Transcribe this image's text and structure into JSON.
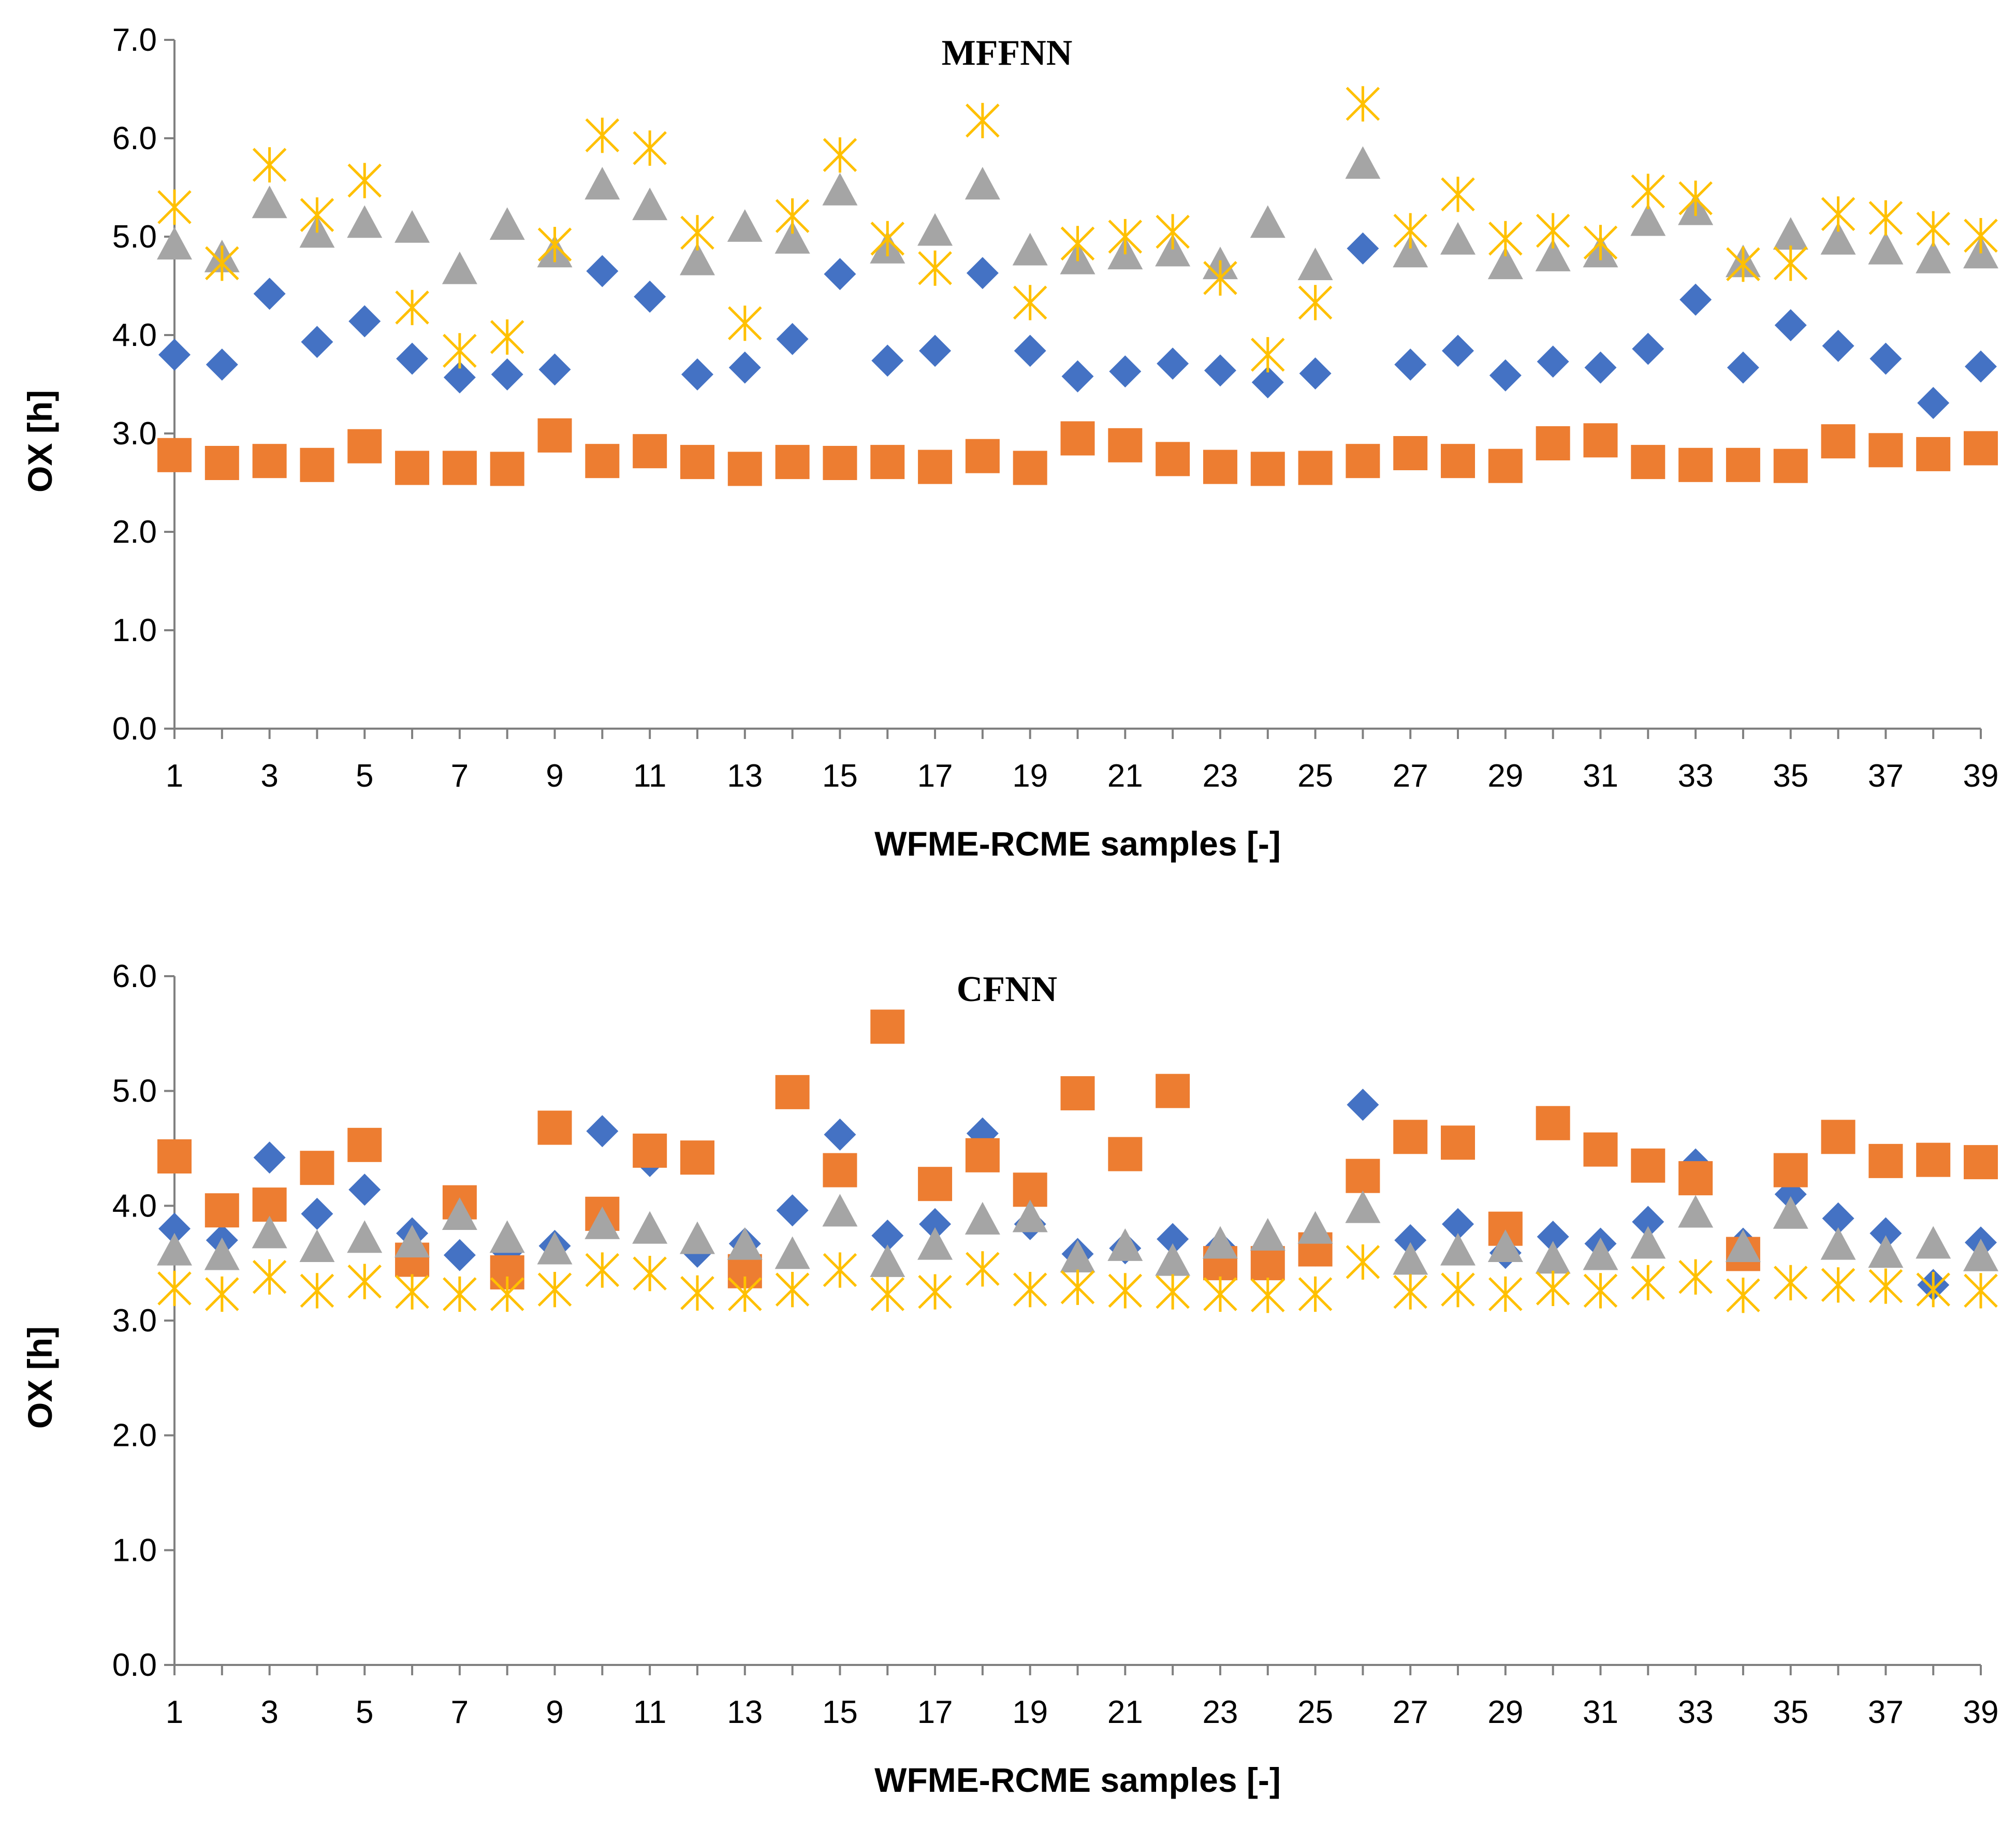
{
  "chart_data": [
    {
      "type": "scatter",
      "title": "MFFNN",
      "xlabel": "WFME-RCME samples [-]",
      "ylabel": "OX [h]",
      "xlim": [
        1,
        39
      ],
      "ylim": [
        0,
        7
      ],
      "yticks": [
        "0.0",
        "1.0",
        "2.0",
        "3.0",
        "4.0",
        "5.0",
        "6.0",
        "7.0"
      ],
      "xticks": [
        "1",
        "3",
        "5",
        "7",
        "9",
        "11",
        "13",
        "15",
        "17",
        "19",
        "21",
        "23",
        "25",
        "27",
        "29",
        "31",
        "33",
        "35",
        "37",
        "39"
      ],
      "x": [
        1,
        2,
        3,
        4,
        5,
        6,
        7,
        8,
        9,
        10,
        11,
        12,
        13,
        14,
        15,
        16,
        17,
        18,
        19,
        20,
        21,
        22,
        23,
        24,
        25,
        26,
        27,
        28,
        29,
        30,
        31,
        32,
        33,
        34,
        35,
        36,
        37,
        38,
        39
      ],
      "series": [
        {
          "name": "series-diamond",
          "marker": "diamond",
          "color": "#4472c4",
          "values": [
            3.8,
            3.7,
            4.42,
            3.93,
            4.14,
            3.76,
            3.57,
            3.6,
            3.65,
            4.65,
            4.39,
            3.6,
            3.67,
            3.96,
            4.62,
            3.74,
            3.84,
            4.63,
            3.84,
            3.58,
            3.63,
            3.71,
            3.64,
            3.52,
            3.61,
            4.88,
            3.7,
            3.84,
            3.59,
            3.73,
            3.67,
            3.86,
            4.36,
            3.67,
            4.1,
            3.89,
            3.76,
            3.31,
            3.68
          ]
        },
        {
          "name": "series-square",
          "marker": "square",
          "color": "#ed7d31",
          "values": [
            2.78,
            2.7,
            2.72,
            2.68,
            2.87,
            2.65,
            2.65,
            2.64,
            2.98,
            2.72,
            2.82,
            2.71,
            2.64,
            2.71,
            2.7,
            2.71,
            2.66,
            2.77,
            2.65,
            2.95,
            2.88,
            2.74,
            2.66,
            2.64,
            2.65,
            2.72,
            2.8,
            2.72,
            2.67,
            2.9,
            2.93,
            2.71,
            2.68,
            2.68,
            2.67,
            2.92,
            2.83,
            2.79,
            2.85
          ]
        },
        {
          "name": "series-triangle",
          "marker": "triangle",
          "color": "#a5a5a5",
          "values": [
            4.92,
            4.79,
            5.34,
            5.04,
            5.14,
            5.09,
            4.67,
            5.12,
            4.84,
            5.53,
            5.32,
            4.76,
            5.1,
            4.98,
            5.47,
            4.88,
            5.06,
            5.53,
            4.86,
            4.77,
            4.82,
            4.85,
            4.72,
            5.14,
            4.71,
            5.74,
            4.84,
            4.97,
            4.72,
            4.8,
            4.84,
            5.16,
            5.27,
            4.74,
            5.02,
            4.97,
            4.87,
            4.78,
            4.83
          ]
        },
        {
          "name": "series-star",
          "marker": "star",
          "color": "#ffc000",
          "values": [
            5.3,
            4.73,
            5.73,
            5.22,
            5.57,
            4.28,
            3.84,
            3.98,
            4.92,
            6.03,
            5.9,
            5.04,
            4.12,
            5.21,
            5.83,
            4.98,
            4.68,
            6.18,
            4.33,
            4.93,
            5.0,
            5.05,
            4.58,
            3.8,
            4.33,
            6.35,
            5.06,
            5.43,
            4.98,
            5.06,
            4.94,
            5.46,
            5.39,
            4.72,
            4.73,
            5.23,
            5.19,
            5.08,
            5.01
          ]
        }
      ]
    },
    {
      "type": "scatter",
      "title": "CFNN",
      "xlabel": "WFME-RCME samples [-]",
      "ylabel": "OX [h]",
      "xlim": [
        1,
        39
      ],
      "ylim": [
        0,
        6
      ],
      "yticks": [
        "0.0",
        "1.0",
        "2.0",
        "3.0",
        "4.0",
        "5.0",
        "6.0"
      ],
      "xticks": [
        "1",
        "3",
        "5",
        "7",
        "9",
        "11",
        "13",
        "15",
        "17",
        "19",
        "21",
        "23",
        "25",
        "27",
        "29",
        "31",
        "33",
        "35",
        "37",
        "39"
      ],
      "x": [
        1,
        2,
        3,
        4,
        5,
        6,
        7,
        8,
        9,
        10,
        11,
        12,
        13,
        14,
        15,
        16,
        17,
        18,
        19,
        20,
        21,
        22,
        23,
        24,
        25,
        26,
        27,
        28,
        29,
        30,
        31,
        32,
        33,
        34,
        35,
        36,
        37,
        38,
        39
      ],
      "series": [
        {
          "name": "series-diamond",
          "marker": "diamond",
          "color": "#4472c4",
          "values": [
            3.8,
            3.7,
            4.42,
            3.93,
            4.14,
            3.76,
            3.57,
            3.6,
            3.65,
            4.65,
            4.39,
            3.6,
            3.67,
            3.96,
            4.62,
            3.74,
            3.84,
            4.63,
            3.84,
            3.58,
            3.63,
            3.71,
            3.64,
            3.52,
            3.61,
            4.88,
            3.7,
            3.84,
            3.59,
            3.73,
            3.67,
            3.86,
            4.36,
            3.67,
            4.1,
            3.89,
            3.76,
            3.31,
            3.68
          ]
        },
        {
          "name": "series-square",
          "marker": "square",
          "color": "#ed7d31",
          "values": [
            4.43,
            3.96,
            4.01,
            4.33,
            4.53,
            3.53,
            4.03,
            3.42,
            4.68,
            3.93,
            4.48,
            4.42,
            3.43,
            4.99,
            4.31,
            5.56,
            4.19,
            4.44,
            4.14,
            4.98,
            4.45,
            5.0,
            3.5,
            3.5,
            3.62,
            4.26,
            4.6,
            4.55,
            3.8,
            4.72,
            4.49,
            4.35,
            4.24,
            3.58,
            4.31,
            4.6,
            4.39,
            4.4,
            4.38
          ]
        },
        {
          "name": "series-triangle",
          "marker": "triangle",
          "color": "#a5a5a5",
          "values": [
            3.61,
            3.57,
            3.76,
            3.64,
            3.72,
            3.68,
            3.92,
            3.72,
            3.62,
            3.84,
            3.8,
            3.71,
            3.66,
            3.58,
            3.95,
            3.51,
            3.66,
            3.88,
            3.9,
            3.55,
            3.65,
            3.52,
            3.67,
            3.74,
            3.8,
            3.98,
            3.53,
            3.61,
            3.64,
            3.54,
            3.57,
            3.67,
            3.94,
            3.64,
            3.93,
            3.66,
            3.59,
            3.67,
            3.56
          ]
        },
        {
          "name": "series-star",
          "marker": "star",
          "color": "#ffc000",
          "values": [
            3.28,
            3.23,
            3.38,
            3.26,
            3.34,
            3.25,
            3.23,
            3.23,
            3.27,
            3.44,
            3.41,
            3.24,
            3.23,
            3.27,
            3.44,
            3.23,
            3.25,
            3.45,
            3.27,
            3.29,
            3.26,
            3.25,
            3.23,
            3.22,
            3.23,
            3.51,
            3.25,
            3.27,
            3.23,
            3.28,
            3.26,
            3.33,
            3.38,
            3.22,
            3.33,
            3.31,
            3.3,
            3.27,
            3.26
          ]
        }
      ]
    }
  ]
}
